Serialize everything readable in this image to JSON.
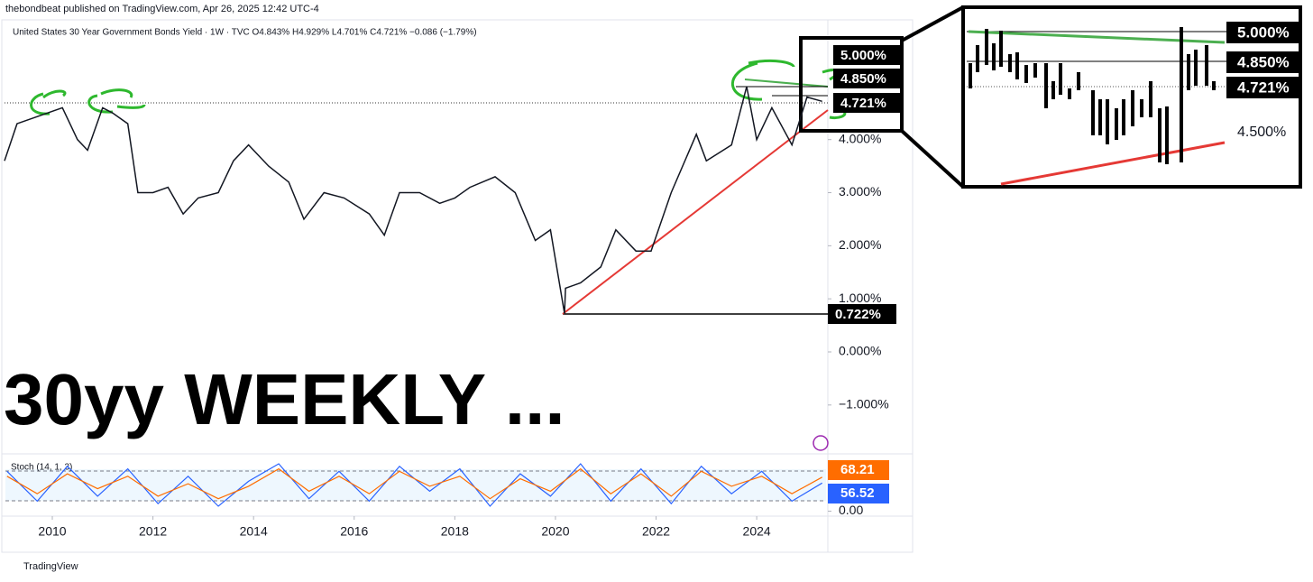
{
  "header": {
    "publisher": "thebondbeat published on TradingView.com, Apr 26, 2025 12:42 UTC-4",
    "symbol": "United States 30 Year Government Bonds Yield · 1W · TVC  O4.843%  H4.929%  L4.701%  C4.721%  −0.086 (−1.79%)",
    "overlay_title": "30yy WEEKLY ...",
    "footer": "TradingView"
  },
  "annotations": {
    "price_tags": [
      "5.000%",
      "4.850%",
      "4.721%",
      "0.722%"
    ],
    "inset_tags": [
      "5.000%",
      "4.850%",
      "4.721%",
      "4.500%"
    ]
  },
  "chart_data": [
    {
      "type": "line",
      "color": "#131722",
      "grid": false,
      "x": [
        2009.05,
        2009.3,
        2009.6,
        2009.9,
        2010.2,
        2010.5,
        2010.7,
        2011.0,
        2011.2,
        2011.5,
        2011.7,
        2012.0,
        2012.3,
        2012.6,
        2012.9,
        2013.3,
        2013.6,
        2013.9,
        2014.3,
        2014.7,
        2015.0,
        2015.4,
        2015.8,
        2016.3,
        2016.6,
        2016.9,
        2017.3,
        2017.7,
        2018.0,
        2018.3,
        2018.8,
        2019.2,
        2019.6,
        2019.9,
        2020.18,
        2020.2,
        2020.5,
        2020.9,
        2021.2,
        2021.6,
        2021.9,
        2022.3,
        2022.8,
        2023.0,
        2023.5,
        2023.8,
        2024.0,
        2024.3,
        2024.7,
        2025.0,
        2025.3
      ],
      "values": [
        3.6,
        4.3,
        4.4,
        4.5,
        4.6,
        4.0,
        3.8,
        4.6,
        4.5,
        4.3,
        3.0,
        3.0,
        3.1,
        2.6,
        2.9,
        3.0,
        3.6,
        3.9,
        3.5,
        3.2,
        2.5,
        3.0,
        2.9,
        2.6,
        2.2,
        3.0,
        3.0,
        2.8,
        2.9,
        3.1,
        3.3,
        3.0,
        2.1,
        2.3,
        0.722,
        1.2,
        1.3,
        1.6,
        2.3,
        1.9,
        1.9,
        3.0,
        4.1,
        3.6,
        3.9,
        5.0,
        4.0,
        4.6,
        3.9,
        4.8,
        4.721
      ],
      "xlim": [
        2009.05,
        2025.36
      ],
      "xticks": [
        2010,
        2012,
        2014,
        2016,
        2018,
        2020,
        2022,
        2024
      ],
      "ylim": [
        -1.87,
        6.12
      ],
      "yticks": [
        {
          "value": -1,
          "label": "−1.000%"
        },
        {
          "value": 0,
          "label": "0.000%"
        },
        {
          "value": 1,
          "label": "1.000%"
        },
        {
          "value": 2,
          "label": "2.000%"
        },
        {
          "value": 3,
          "label": "3.000%"
        },
        {
          "value": 4,
          "label": "4.000%"
        }
      ]
    },
    {
      "type": "line",
      "title": "Stoch (14, 1, 3)",
      "x": [
        2009.1,
        2009.7,
        2010.3,
        2010.9,
        2011.5,
        2012.1,
        2012.7,
        2013.3,
        2013.9,
        2014.5,
        2015.1,
        2015.7,
        2016.3,
        2016.9,
        2017.5,
        2018.1,
        2018.7,
        2019.3,
        2019.9,
        2020.5,
        2021.1,
        2021.7,
        2022.3,
        2022.9,
        2023.5,
        2024.1,
        2024.7,
        2025.3
      ],
      "series": [
        {
          "color": "#2962ff",
          "values": [
            80,
            20,
            90,
            30,
            85,
            15,
            70,
            10,
            60,
            95,
            25,
            80,
            20,
            90,
            40,
            85,
            10,
            75,
            30,
            95,
            20,
            85,
            15,
            90,
            35,
            80,
            20,
            56.52
          ]
        },
        {
          "color": "#ff6d00",
          "values": [
            70,
            35,
            75,
            45,
            70,
            30,
            55,
            25,
            50,
            85,
            40,
            70,
            35,
            80,
            50,
            70,
            25,
            65,
            40,
            85,
            35,
            75,
            30,
            80,
            50,
            70,
            35,
            68.21
          ]
        }
      ],
      "xlim": [
        2009.05,
        2025.36
      ],
      "ylim": [
        -10,
        115
      ],
      "yticks": [
        {
          "value": 0,
          "label": "0.00"
        }
      ]
    }
  ]
}
